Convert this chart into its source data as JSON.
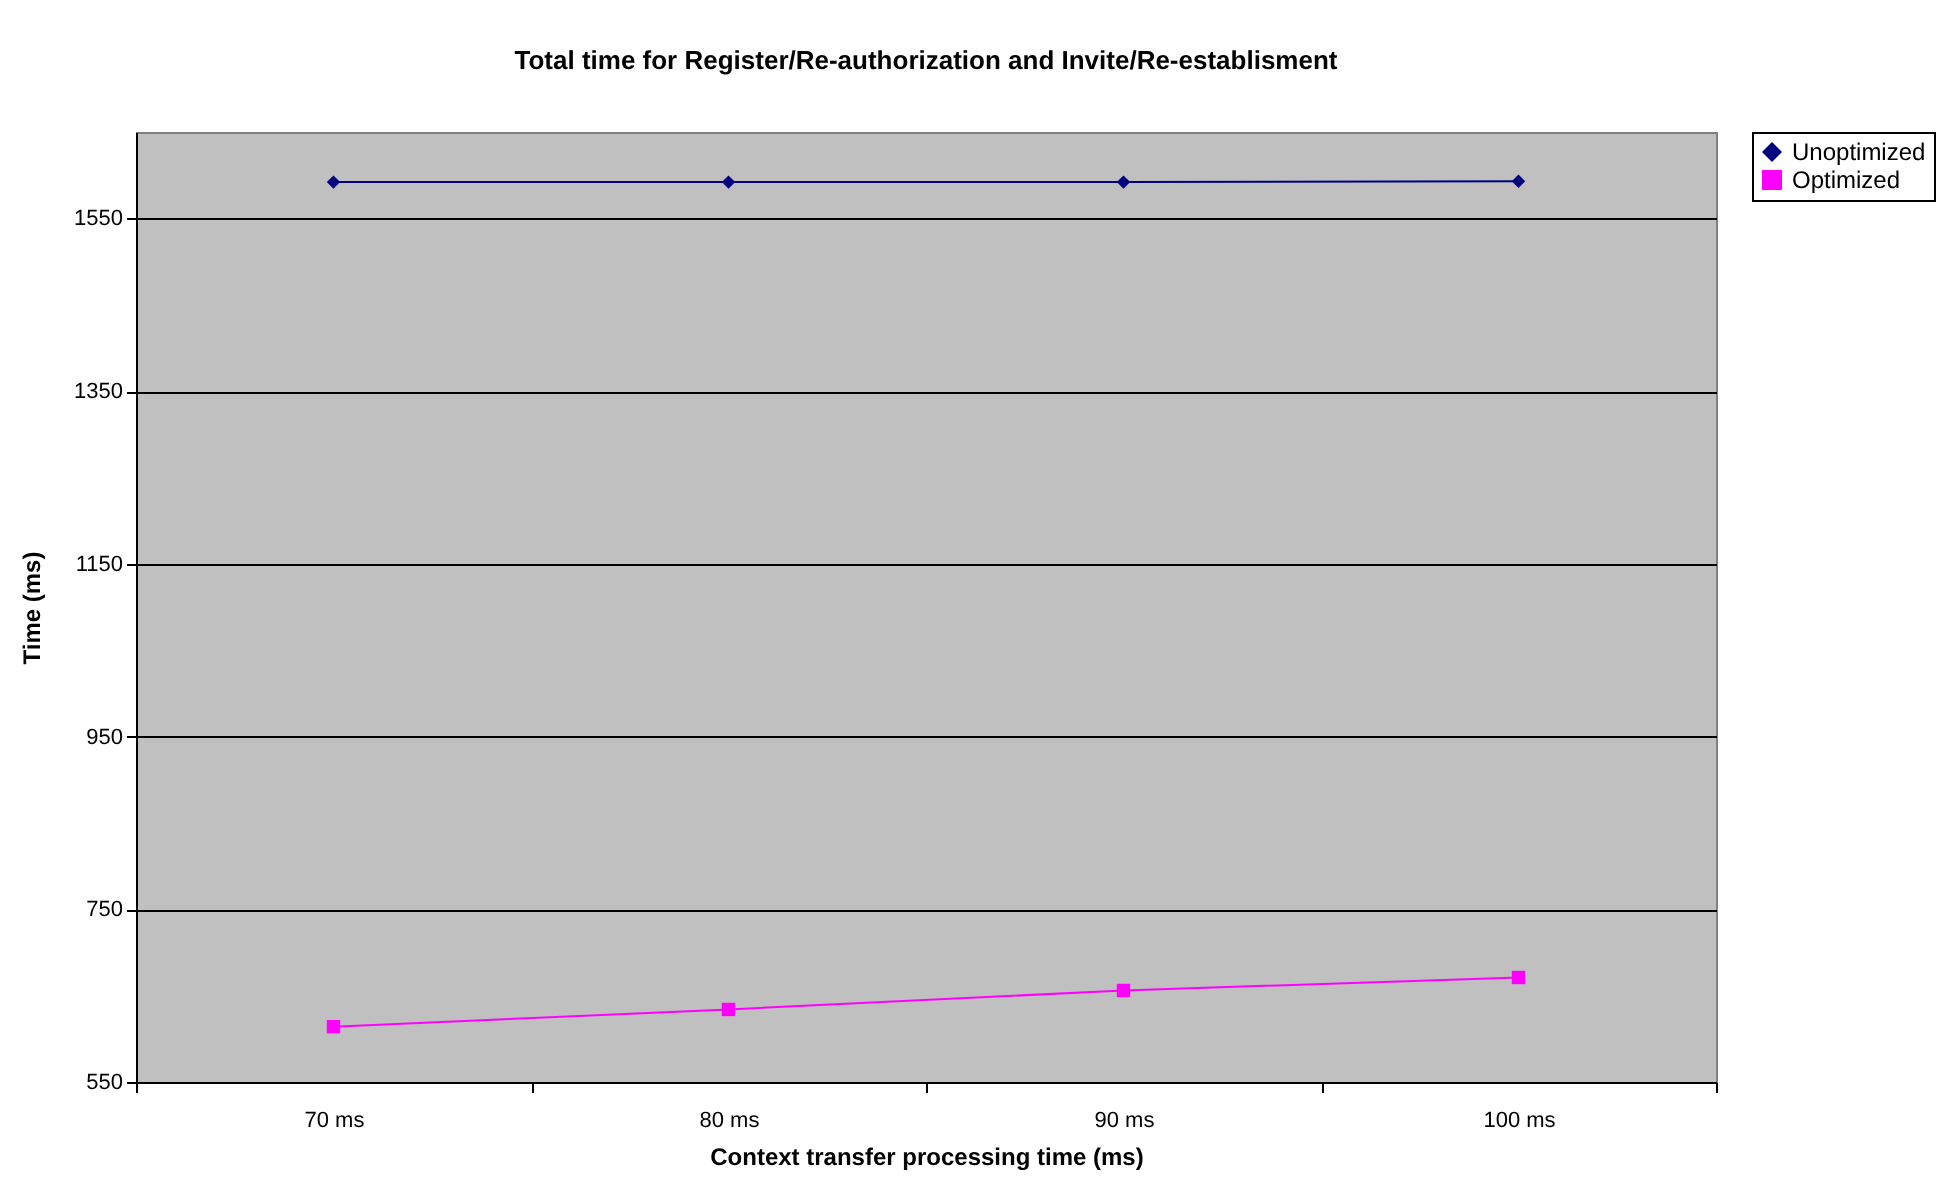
{
  "chart_data": {
    "type": "line",
    "title": "Total time for Register/Re-authorization and Invite/Re-establisment",
    "xlabel": "Context transfer processing time (ms)",
    "ylabel": "Time (ms)",
    "categories": [
      "70 ms",
      "80 ms",
      "90 ms",
      "100 ms"
    ],
    "series": [
      {
        "name": "Unoptimized",
        "color": "#000080",
        "marker": "diamond",
        "values": [
          1592,
          1592,
          1592,
          1593
        ]
      },
      {
        "name": "Optimized",
        "color": "#ff00ff",
        "marker": "square",
        "values": [
          614,
          634,
          656,
          671
        ]
      }
    ],
    "ylim": [
      550,
      1650
    ],
    "yticks": [
      550,
      750,
      950,
      1150,
      1350,
      1550
    ],
    "grid": "y",
    "legend": "right",
    "line_style": "solid"
  }
}
